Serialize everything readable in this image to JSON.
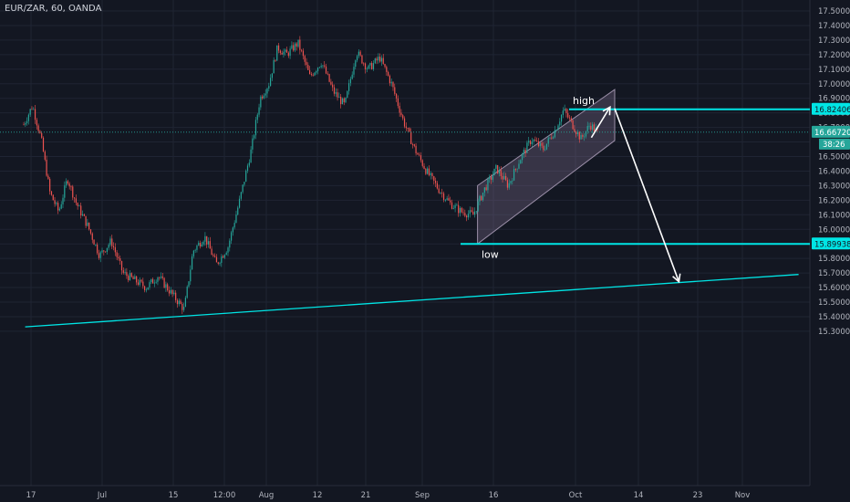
{
  "title": "EUR/ZAR, 60, OANDA",
  "colors": {
    "background": "#131722",
    "grid": "#1f2433",
    "axis_text": "#b2b5be",
    "bull": "#26a69a",
    "bear": "#ef5350",
    "cyan": "#00e5e5",
    "channel_fill": "#7c6b8a",
    "white": "#ffffff"
  },
  "chart_data": {
    "type": "candlestick",
    "symbol": "EUR/ZAR",
    "interval": "60",
    "broker": "OANDA",
    "ylim": [
      15.25,
      17.57
    ],
    "y_ticks": [
      17.5,
      17.4,
      17.3,
      17.2,
      17.1,
      17.0,
      16.9,
      16.8,
      16.7,
      16.6,
      16.5,
      16.4,
      16.3,
      16.2,
      16.1,
      16.0,
      15.9,
      15.8,
      15.7,
      15.6,
      15.5,
      15.4,
      15.3
    ],
    "y_tick_labels": [
      "17.50000",
      "17.40000",
      "17.30000",
      "17.20000",
      "17.10000",
      "17.00000",
      "16.90000",
      "16.80000",
      "16.70000",
      "16.60000",
      "16.50000",
      "16.40000",
      "16.30000",
      "16.20000",
      "16.10000",
      "16.00000",
      "15.90000",
      "15.80000",
      "15.70000",
      "15.60000",
      "15.50000",
      "15.40000",
      "15.30000"
    ],
    "x_ticks": [
      {
        "label": "17",
        "x": 0
      },
      {
        "label": "Jul",
        "x": 1
      },
      {
        "label": "15",
        "x": 2
      },
      {
        "label": "12:00",
        "x": 3
      },
      {
        "label": "Aug",
        "x": 4
      },
      {
        "label": "12",
        "x": 5
      },
      {
        "label": "21",
        "x": 6
      },
      {
        "label": "Sep",
        "x": 7
      },
      {
        "label": "16",
        "x": 8
      },
      {
        "label": "Oct",
        "x": 9
      },
      {
        "label": "14",
        "x": 10
      },
      {
        "label": "23",
        "x": 11
      },
      {
        "label": "Nov",
        "x": 12
      }
    ],
    "price_path": [
      [
        0,
        16.72
      ],
      [
        0.15,
        16.85
      ],
      [
        0.3,
        16.62
      ],
      [
        0.45,
        16.25
      ],
      [
        0.6,
        16.12
      ],
      [
        0.75,
        16.35
      ],
      [
        0.9,
        16.18
      ],
      [
        1.1,
        16.02
      ],
      [
        1.3,
        15.82
      ],
      [
        1.5,
        15.92
      ],
      [
        1.7,
        15.7
      ],
      [
        1.9,
        15.65
      ],
      [
        2.1,
        15.6
      ],
      [
        2.3,
        15.68
      ],
      [
        2.55,
        15.55
      ],
      [
        2.75,
        15.45
      ],
      [
        2.9,
        15.85
      ],
      [
        3.1,
        15.95
      ],
      [
        3.3,
        15.76
      ],
      [
        3.5,
        15.88
      ],
      [
        3.7,
        16.2
      ],
      [
        3.9,
        16.55
      ],
      [
        4.05,
        16.9
      ],
      [
        4.2,
        17.0
      ],
      [
        4.35,
        17.25
      ],
      [
        4.5,
        17.2
      ],
      [
        4.7,
        17.28
      ],
      [
        4.9,
        17.05
      ],
      [
        5.1,
        17.15
      ],
      [
        5.3,
        16.95
      ],
      [
        5.5,
        16.85
      ],
      [
        5.7,
        17.22
      ],
      [
        5.9,
        17.1
      ],
      [
        6.1,
        17.18
      ],
      [
        6.3,
        17.0
      ],
      [
        6.5,
        16.75
      ],
      [
        6.7,
        16.55
      ],
      [
        6.9,
        16.4
      ],
      [
        7.1,
        16.28
      ],
      [
        7.3,
        16.18
      ],
      [
        7.5,
        16.12
      ],
      [
        7.7,
        16.1
      ],
      [
        7.9,
        16.28
      ],
      [
        8.1,
        16.42
      ],
      [
        8.3,
        16.3
      ],
      [
        8.5,
        16.48
      ],
      [
        8.7,
        16.62
      ],
      [
        8.9,
        16.55
      ],
      [
        9.1,
        16.68
      ],
      [
        9.25,
        16.82
      ],
      [
        9.4,
        16.72
      ],
      [
        9.55,
        16.62
      ],
      [
        9.7,
        16.72
      ],
      [
        9.85,
        16.66
      ]
    ],
    "current_price": 16.6672,
    "current_price_label": "16.66720",
    "countdown": "38:26",
    "levels": [
      {
        "name": "high",
        "value": 16.82406,
        "label": "16.82406"
      },
      {
        "name": "low",
        "value": 15.89938,
        "label": "15.89938"
      }
    ],
    "annotations": {
      "high_text": "high",
      "low_text": "low"
    },
    "channel": {
      "start_x": 7.65,
      "end_x": 10.0,
      "upper_start": 16.3,
      "upper_end": 16.96,
      "lower_start": 15.9,
      "lower_end": 16.61
    },
    "trendline": {
      "x1": -0.1,
      "y1": 15.33,
      "x2": 13.15,
      "y2": 15.69
    },
    "arrows": [
      {
        "from": [
          9.6,
          16.63
        ],
        "to": [
          9.92,
          16.84
        ]
      },
      {
        "from": [
          10.0,
          16.83
        ],
        "to": [
          11.1,
          15.64
        ]
      }
    ],
    "grid": true
  }
}
